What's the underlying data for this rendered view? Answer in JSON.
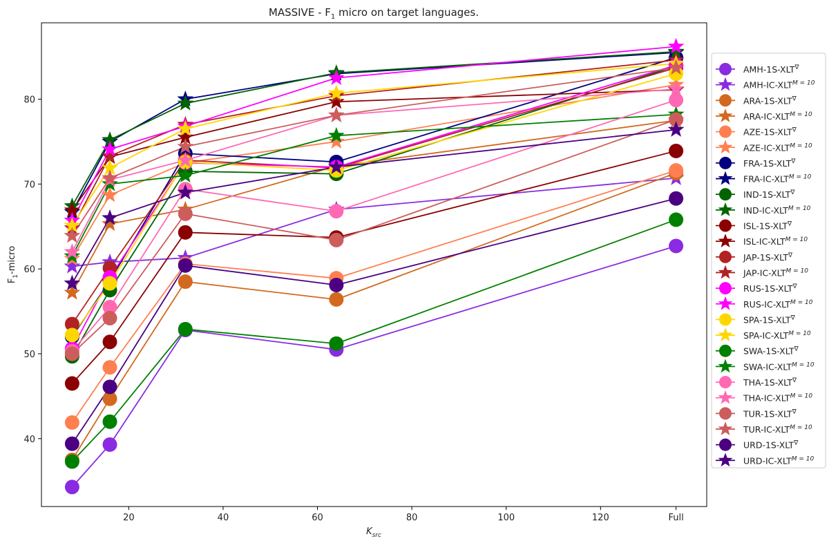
{
  "chart_data": {
    "type": "line",
    "title": {
      "main": "MASSIVE - F",
      "sub": "1",
      "rest": " micro on target languages."
    },
    "xlabel": {
      "main": "K",
      "sub": "src"
    },
    "ylabel": {
      "main": "F",
      "sub": "1",
      "rest": "-micro"
    },
    "x_positions": [
      8,
      16,
      32,
      64,
      136
    ],
    "xticks": [
      {
        "label": "20",
        "value": 20
      },
      {
        "label": "40",
        "value": 40
      },
      {
        "label": "60",
        "value": 60
      },
      {
        "label": "80",
        "value": 80
      },
      {
        "label": "100",
        "value": 100
      },
      {
        "label": "120",
        "value": 120
      },
      {
        "label": "Full",
        "value": 136
      }
    ],
    "xlim": [
      1.5,
      142.5
    ],
    "yticks": [
      40,
      50,
      60,
      70,
      80
    ],
    "ylim": [
      32,
      89
    ],
    "grid": false,
    "legend_position": "right",
    "series": [
      {
        "name": "AMH-1S-XLT",
        "marker": "circle",
        "sup": "∇",
        "color": "#8a2be2",
        "values": [
          34.3,
          39.3,
          52.8,
          50.5,
          62.7
        ]
      },
      {
        "name": "AMH-IC-XLT",
        "marker": "star",
        "sup": "M = 10",
        "color": "#8a2be2",
        "values": [
          60.3,
          60.8,
          61.3,
          67.0,
          70.7
        ]
      },
      {
        "name": "ARA-1S-XLT",
        "marker": "circle",
        "sup": "∇",
        "color": "#d2691e",
        "values": [
          37.5,
          44.7,
          58.5,
          56.4,
          71.3
        ]
      },
      {
        "name": "ARA-IC-XLT",
        "marker": "star",
        "sup": "M = 10",
        "color": "#d2691e",
        "values": [
          57.2,
          65.3,
          67.0,
          72.1,
          77.5
        ]
      },
      {
        "name": "AZE-1S-XLT",
        "marker": "circle",
        "sup": "∇",
        "color": "#ff7f50",
        "values": [
          41.9,
          48.4,
          60.6,
          58.9,
          71.6
        ]
      },
      {
        "name": "AZE-IC-XLT",
        "marker": "star",
        "sup": "M = 10",
        "color": "#ff7f50",
        "values": [
          61.2,
          68.7,
          72.5,
          75.0,
          81.7
        ]
      },
      {
        "name": "FRA-1S-XLT",
        "marker": "circle",
        "sup": "∇",
        "color": "#000080",
        "values": [
          52.0,
          58.6,
          73.6,
          72.6,
          84.9
        ]
      },
      {
        "name": "FRA-IC-XLT",
        "marker": "star",
        "sup": "M = 10",
        "color": "#000080",
        "values": [
          66.7,
          75.0,
          80.0,
          83.0,
          85.5
        ]
      },
      {
        "name": "IND-1S-XLT",
        "marker": "circle",
        "sup": "∇",
        "color": "#006400",
        "values": [
          49.7,
          57.5,
          71.5,
          71.2,
          83.9
        ]
      },
      {
        "name": "IND-IC-XLT",
        "marker": "star",
        "sup": "M = 10",
        "color": "#006400",
        "values": [
          67.4,
          75.2,
          79.5,
          83.1,
          85.6
        ]
      },
      {
        "name": "ISL-1S-XLT",
        "marker": "circle",
        "sup": "∇",
        "color": "#8b0000",
        "values": [
          46.5,
          51.4,
          64.3,
          63.7,
          73.9
        ]
      },
      {
        "name": "ISL-IC-XLT",
        "marker": "star",
        "sup": "M = 10",
        "color": "#8b0000",
        "values": [
          66.9,
          73.2,
          75.5,
          79.7,
          81.1
        ]
      },
      {
        "name": "JAP-1S-XLT",
        "marker": "circle",
        "sup": "∇",
        "color": "#b22222",
        "values": [
          53.5,
          60.1,
          72.8,
          71.9,
          83.7
        ]
      },
      {
        "name": "JAP-IC-XLT",
        "marker": "star",
        "sup": "M = 10",
        "color": "#b22222",
        "values": [
          64.8,
          73.3,
          77.0,
          80.4,
          84.6
        ]
      },
      {
        "name": "RUS-1S-XLT",
        "marker": "circle",
        "sup": "∇",
        "color": "#ff00ff",
        "values": [
          50.6,
          59.0,
          72.5,
          72.0,
          84.0
        ]
      },
      {
        "name": "RUS-IC-XLT",
        "marker": "star",
        "sup": "M = 10",
        "color": "#ff00ff",
        "values": [
          65.7,
          74.1,
          76.8,
          82.5,
          86.2
        ]
      },
      {
        "name": "SPA-1S-XLT",
        "marker": "circle",
        "sup": "∇",
        "color": "#ffd700",
        "values": [
          52.2,
          58.3,
          72.6,
          71.6,
          83.0
        ]
      },
      {
        "name": "SPA-IC-XLT",
        "marker": "star",
        "sup": "M = 10",
        "color": "#ffd700",
        "values": [
          65.1,
          71.9,
          76.5,
          80.7,
          84.2
        ]
      },
      {
        "name": "SWA-1S-XLT",
        "marker": "circle",
        "sup": "∇",
        "color": "#008000",
        "values": [
          37.3,
          42.0,
          52.9,
          51.2,
          65.8
        ]
      },
      {
        "name": "SWA-IC-XLT",
        "marker": "star",
        "sup": "M = 10",
        "color": "#008000",
        "values": [
          61.5,
          70.0,
          71.0,
          75.7,
          78.2
        ]
      },
      {
        "name": "THA-1S-XLT",
        "marker": "circle",
        "sup": "∇",
        "color": "#ff69b4",
        "values": [
          50.3,
          55.5,
          69.4,
          66.8,
          79.9
        ]
      },
      {
        "name": "THA-IC-XLT",
        "marker": "star",
        "sup": "M = 10",
        "color": "#ff69b4",
        "values": [
          62.0,
          70.5,
          72.8,
          78.1,
          81.2
        ]
      },
      {
        "name": "TUR-1S-XLT",
        "marker": "circle",
        "sup": "∇",
        "color": "#cd5c5c",
        "values": [
          50.0,
          54.2,
          66.5,
          63.4,
          77.6
        ]
      },
      {
        "name": "TUR-IC-XLT",
        "marker": "star",
        "sup": "M = 10",
        "color": "#cd5c5c",
        "values": [
          63.9,
          70.7,
          74.4,
          78.1,
          83.7
        ]
      },
      {
        "name": "URD-1S-XLT",
        "marker": "circle",
        "sup": "∇",
        "color": "#4b0082",
        "values": [
          39.4,
          46.1,
          60.4,
          58.1,
          68.3
        ]
      },
      {
        "name": "URD-IC-XLT",
        "marker": "star",
        "sup": "M = 10",
        "color": "#4b0082",
        "values": [
          58.3,
          66.0,
          69.0,
          72.0,
          76.4
        ]
      }
    ]
  }
}
